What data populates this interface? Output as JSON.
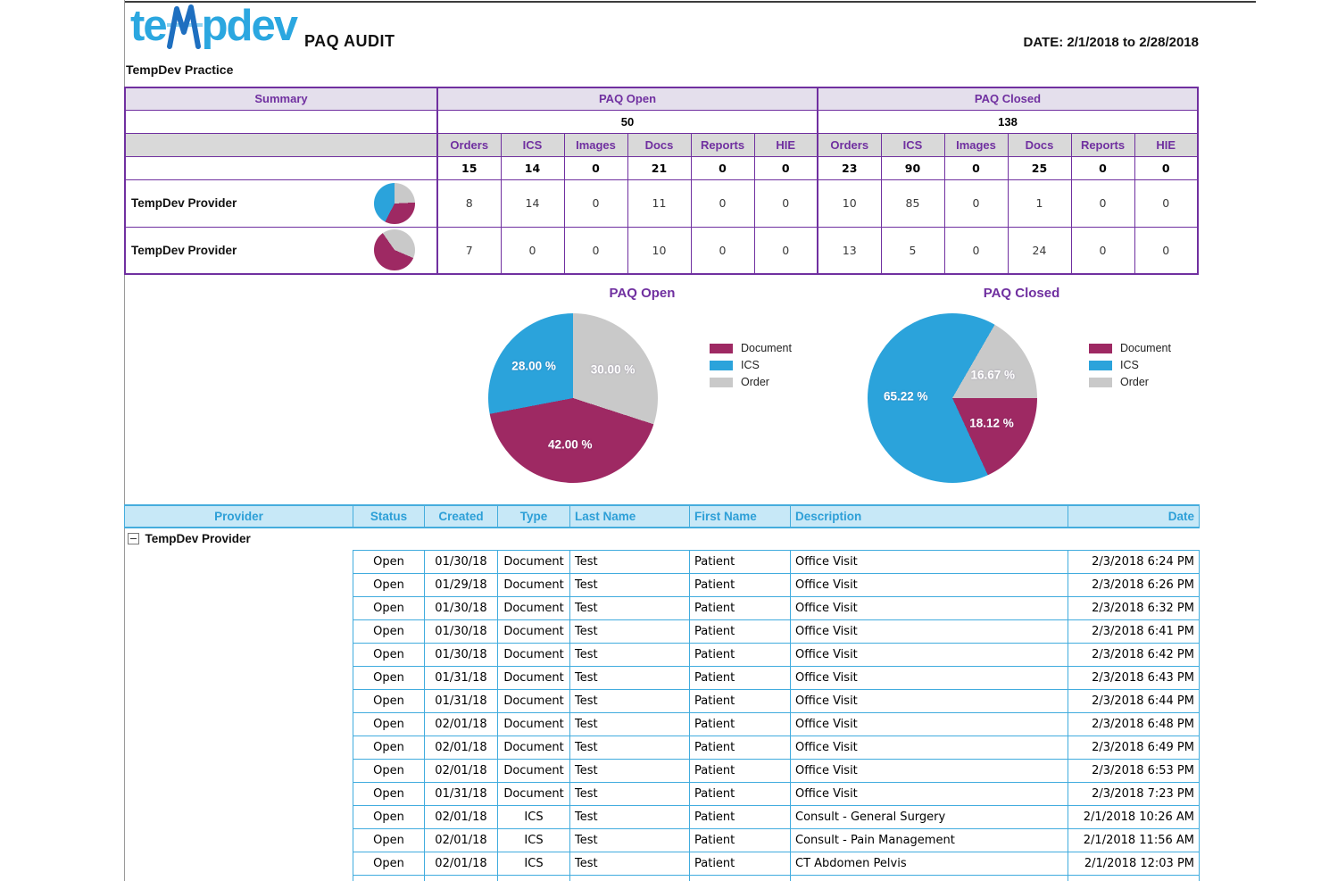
{
  "page": {
    "brand_left": "te",
    "brand_right": "pdev",
    "report_title": "PAQ AUDIT",
    "date_range": "DATE: 2/1/2018 to 2/28/2018",
    "practice_name": "TempDev Practice"
  },
  "colors": {
    "purple": "#7030A0",
    "lavender_bg": "#E4DFEC",
    "gray_header_bg": "#D9D9D9",
    "blue_header_bg": "#C7E8F7",
    "blue_header_text": "#2D9FD7",
    "blue_border": "#41ACDE",
    "document": "#9E2963",
    "ics": "#2BA3DB",
    "order": "#C9C9C9",
    "logo_blue": "#2BA7E0"
  },
  "summary_table": {
    "summary_header": "Summary",
    "open_header": "PAQ Open",
    "closed_header": "PAQ Closed",
    "open_total": "50",
    "closed_total": "138",
    "sub_headers": [
      "Orders",
      "ICS",
      "Images",
      "Docs",
      "Reports",
      "HIE"
    ],
    "open_totals": [
      "15",
      "14",
      "0",
      "21",
      "0",
      "0"
    ],
    "closed_totals": [
      "23",
      "90",
      "0",
      "25",
      "0",
      "0"
    ],
    "providers": [
      {
        "name": "TempDev Provider",
        "open": [
          "8",
          "14",
          "0",
          "11",
          "0",
          "0"
        ],
        "closed": [
          "10",
          "85",
          "0",
          "1",
          "0",
          "0"
        ],
        "pie": {
          "start": 0,
          "slices": [
            {
              "key": "order",
              "pct": 24.2
            },
            {
              "key": "document",
              "pct": 33.4
            },
            {
              "key": "ics",
              "pct": 42.4
            }
          ]
        }
      },
      {
        "name": "TempDev Provider",
        "open": [
          "7",
          "0",
          "0",
          "10",
          "0",
          "0"
        ],
        "closed": [
          "13",
          "5",
          "0",
          "24",
          "0",
          "0"
        ],
        "pie": {
          "start": -35,
          "slices": [
            {
              "key": "order",
              "pct": 41.2
            },
            {
              "key": "document",
              "pct": 58.8
            }
          ]
        }
      }
    ]
  },
  "chart_data": [
    {
      "type": "pie",
      "title": "PAQ Open",
      "legend": [
        "Document",
        "ICS",
        "Order"
      ],
      "legend_position": "right",
      "start_angle": 0,
      "slices": [
        {
          "label": "Order",
          "value": 30.0,
          "text": "30.00 %",
          "label_r": 0.58
        },
        {
          "label": "Document",
          "value": 42.0,
          "text": "42.00 %",
          "label_r": 0.55
        },
        {
          "label": "ICS",
          "value": 28.0,
          "text": "28.00 %",
          "label_r": 0.6
        }
      ]
    },
    {
      "type": "pie",
      "title": "PAQ Closed",
      "legend": [
        "Document",
        "ICS",
        "Order"
      ],
      "legend_position": "right",
      "start_angle": 30,
      "slices": [
        {
          "label": "Order",
          "value": 16.67,
          "text": "16.67 %",
          "label_r": 0.55
        },
        {
          "label": "Document",
          "value": 18.12,
          "text": "18.12 %",
          "label_r": 0.55
        },
        {
          "label": "ICS",
          "value": 65.22,
          "text": "65.22 %",
          "label_r": 0.55
        }
      ]
    }
  ],
  "detail_table": {
    "columns": [
      "Provider",
      "Status",
      "Created",
      "Type",
      "Last Name",
      "First Name",
      "Description",
      "Date"
    ],
    "group_label": "TempDev Provider",
    "rows": [
      [
        "Open",
        "01/30/18",
        "Document",
        "Test",
        "Patient",
        "Office Visit",
        "2/3/2018 6:24 PM"
      ],
      [
        "Open",
        "01/29/18",
        "Document",
        "Test",
        "Patient",
        "Office Visit",
        "2/3/2018 6:26 PM"
      ],
      [
        "Open",
        "01/30/18",
        "Document",
        "Test",
        "Patient",
        "Office Visit",
        "2/3/2018 6:32 PM"
      ],
      [
        "Open",
        "01/30/18",
        "Document",
        "Test",
        "Patient",
        "Office Visit",
        "2/3/2018 6:41 PM"
      ],
      [
        "Open",
        "01/30/18",
        "Document",
        "Test",
        "Patient",
        "Office Visit",
        "2/3/2018 6:42 PM"
      ],
      [
        "Open",
        "01/31/18",
        "Document",
        "Test",
        "Patient",
        "Office Visit",
        "2/3/2018 6:43 PM"
      ],
      [
        "Open",
        "01/31/18",
        "Document",
        "Test",
        "Patient",
        "Office Visit",
        "2/3/2018 6:44 PM"
      ],
      [
        "Open",
        "02/01/18",
        "Document",
        "Test",
        "Patient",
        "Office Visit",
        "2/3/2018 6:48 PM"
      ],
      [
        "Open",
        "02/01/18",
        "Document",
        "Test",
        "Patient",
        "Office Visit",
        "2/3/2018 6:49 PM"
      ],
      [
        "Open",
        "02/01/18",
        "Document",
        "Test",
        "Patient",
        "Office Visit",
        "2/3/2018 6:53 PM"
      ],
      [
        "Open",
        "01/31/18",
        "Document",
        "Test",
        "Patient",
        "Office Visit",
        "2/3/2018 7:23 PM"
      ],
      [
        "Open",
        "02/01/18",
        "ICS",
        "Test",
        "Patient",
        "Consult - General Surgery",
        "2/1/2018 10:26 AM"
      ],
      [
        "Open",
        "02/01/18",
        "ICS",
        "Test",
        "Patient",
        "Consult - Pain Management",
        "2/1/2018 11:56 AM"
      ],
      [
        "Open",
        "02/01/18",
        "ICS",
        "Test",
        "Patient",
        "CT Abdomen Pelvis",
        "2/1/2018 12:03 PM"
      ]
    ]
  }
}
